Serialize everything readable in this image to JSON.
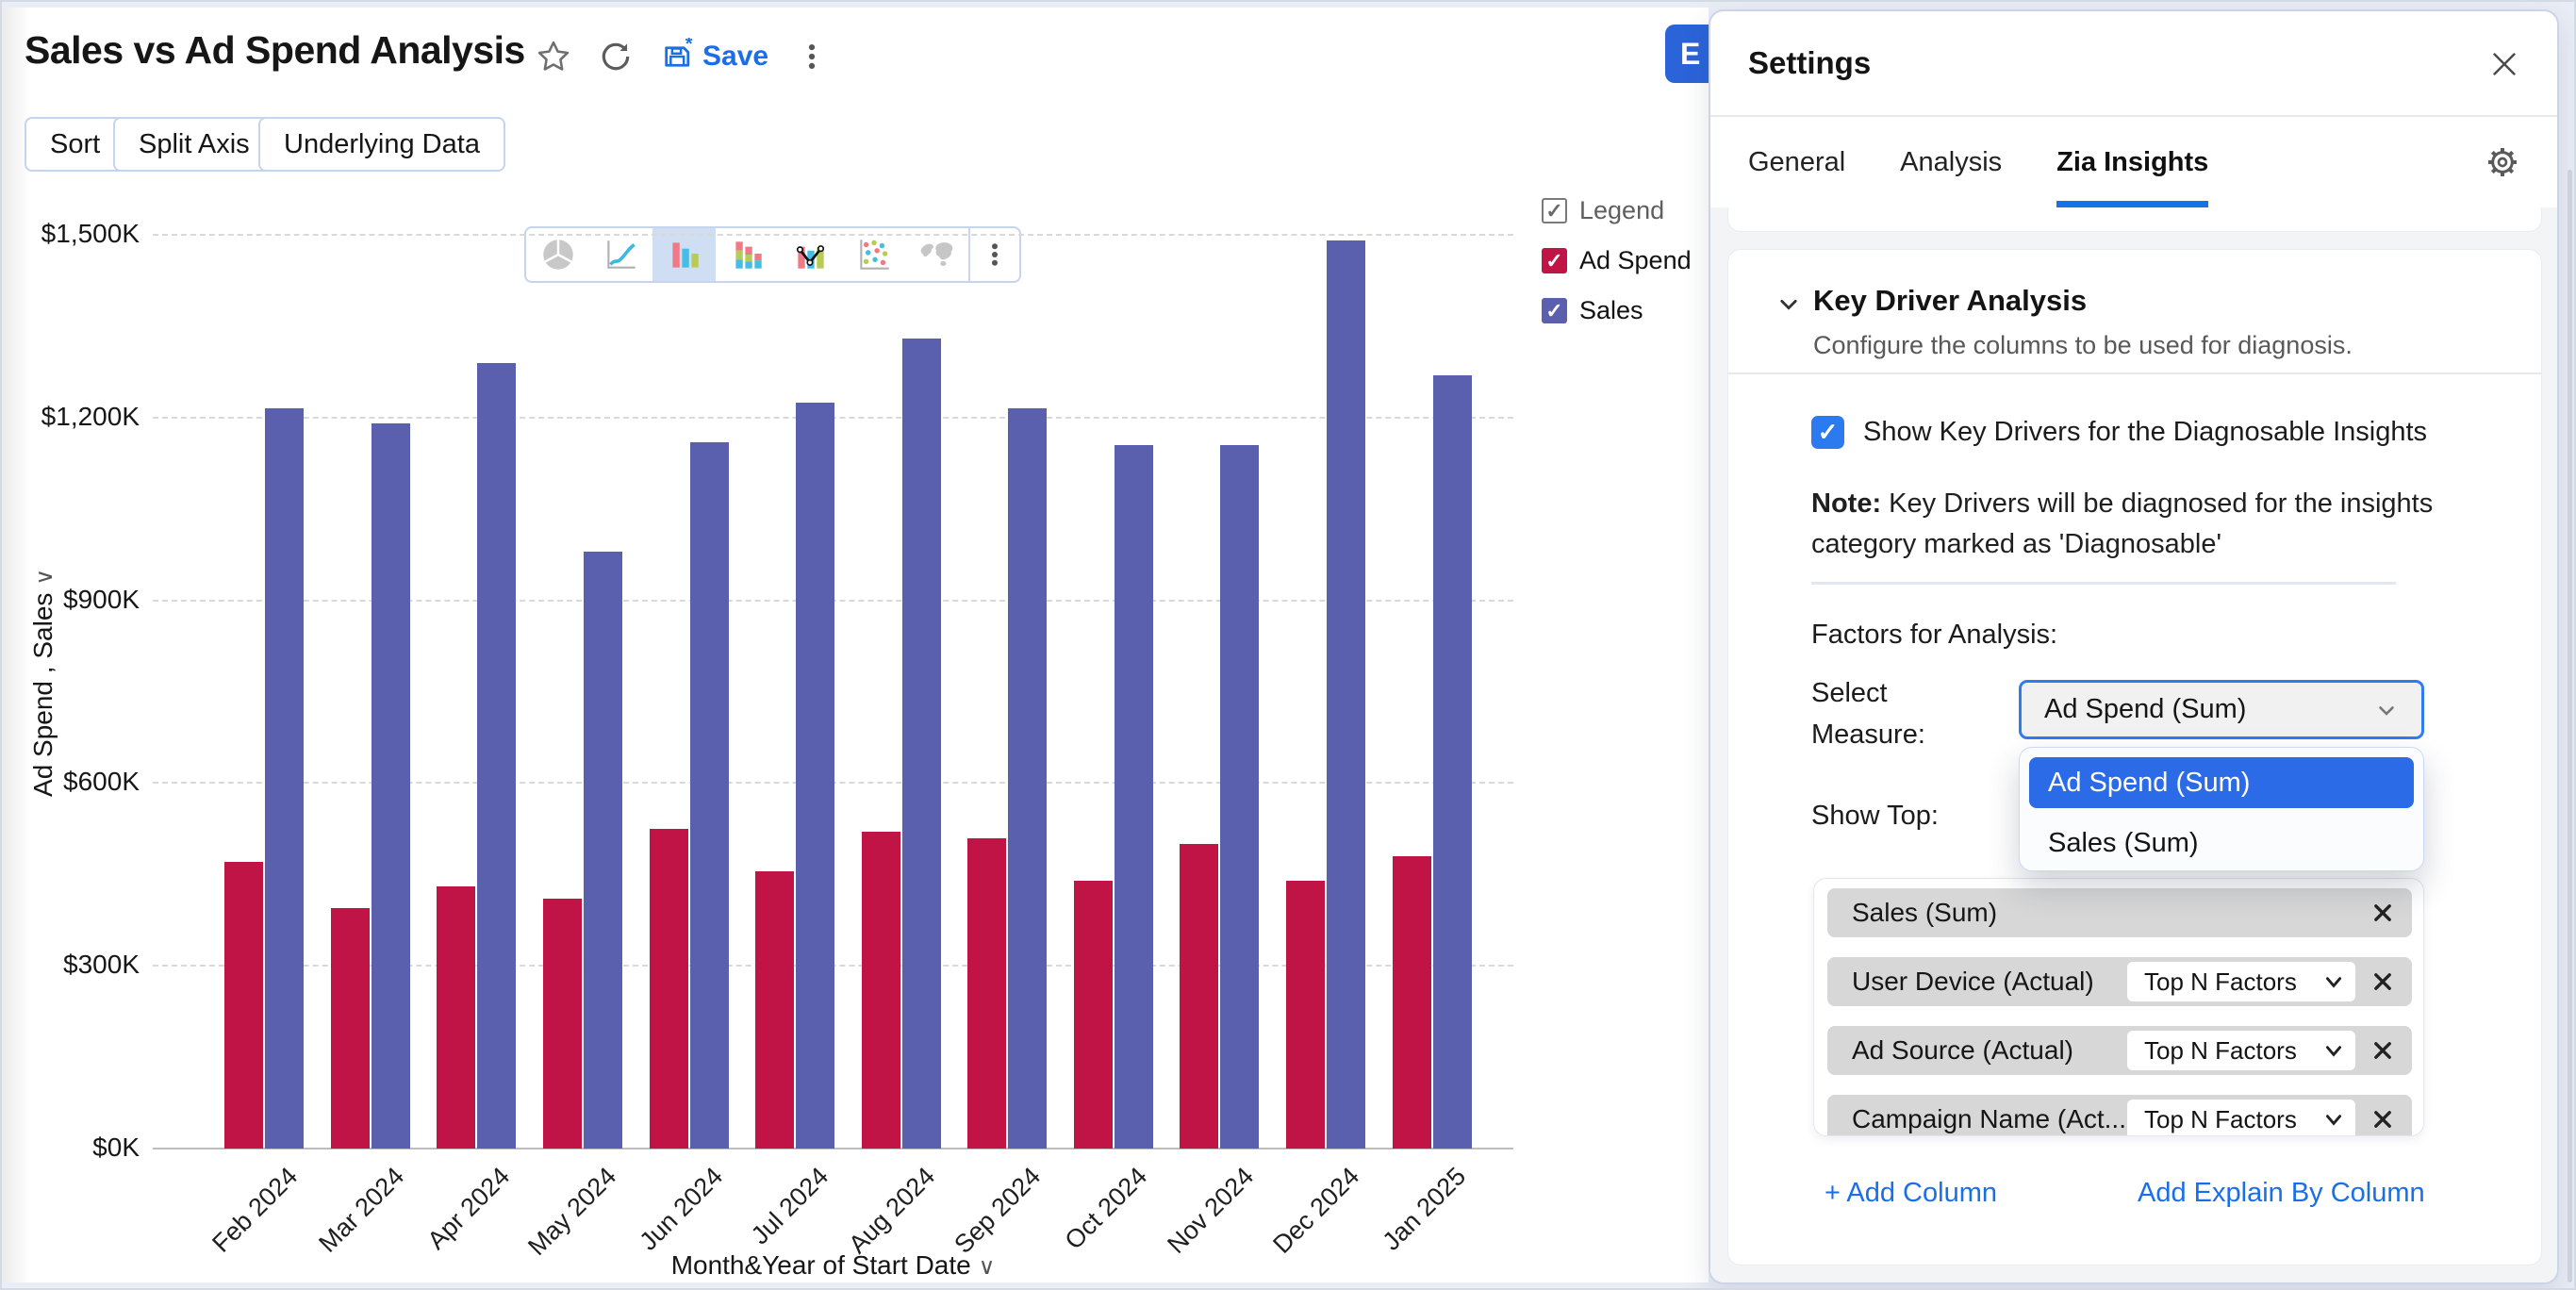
{
  "page": {
    "title": "Sales vs Ad Spend Analysis",
    "actions": {
      "save": "Save"
    },
    "partial_edit_button": "E",
    "view_buttons": [
      "Sort",
      "Split Axis",
      "Underlying Data"
    ],
    "chart_type_icons": [
      {
        "name": "pie-chart-icon",
        "state": "disabled"
      },
      {
        "name": "line-chart-icon",
        "state": "normal"
      },
      {
        "name": "bar-chart-icon",
        "state": "selected"
      },
      {
        "name": "stacked-bar-chart-icon",
        "state": "normal"
      },
      {
        "name": "combo-chart-icon",
        "state": "normal"
      },
      {
        "name": "scatter-chart-icon",
        "state": "normal"
      },
      {
        "name": "map-chart-icon",
        "state": "disabled"
      }
    ]
  },
  "legend": {
    "title": "Legend",
    "items": [
      {
        "label": "Ad Spend",
        "color": "#c01346"
      },
      {
        "label": "Sales",
        "color": "#5b60ae"
      }
    ]
  },
  "chart_data": {
    "type": "bar",
    "title": "Sales vs Ad Spend Analysis",
    "categories": [
      "Feb 2024",
      "Mar 2024",
      "Apr 2024",
      "May 2024",
      "Jun 2024",
      "Jul 2024",
      "Aug 2024",
      "Sep 2024",
      "Oct 2024",
      "Nov 2024",
      "Dec 2024",
      "Jan 2025"
    ],
    "series": [
      {
        "name": "Ad Spend",
        "color": "#c01346",
        "values": [
          470,
          395,
          430,
          410,
          525,
          455,
          520,
          510,
          440,
          500,
          440,
          480
        ]
      },
      {
        "name": "Sales",
        "color": "#5b60ae",
        "values": [
          1215,
          1190,
          1290,
          980,
          1160,
          1225,
          1330,
          1215,
          1155,
          1155,
          1490,
          1270
        ]
      }
    ],
    "unit": "thousand USD ($K)",
    "xlabel": "Month&Year of Start Date",
    "ylabel": "Ad Spend , Sales",
    "y_ticks": [
      "$0K",
      "$300K",
      "$600K",
      "$900K",
      "$1,200K",
      "$1,500K"
    ],
    "y_tick_values": [
      0,
      300,
      600,
      900,
      1200,
      1500
    ],
    "ylim": [
      0,
      1500
    ],
    "grid": "horizontal dashed",
    "legend_position": "top-right"
  },
  "settings_panel": {
    "title": "Settings",
    "tabs": [
      {
        "label": "General",
        "active": false
      },
      {
        "label": "Analysis",
        "active": false
      },
      {
        "label": "Zia Insights",
        "active": true
      }
    ],
    "key_driver": {
      "title": "Key Driver Analysis",
      "subtitle": "Configure the columns to be used for diagnosis.",
      "show_key_drivers_label": "Show Key Drivers for the Diagnosable Insights",
      "show_key_drivers_checked": true,
      "note_bold": "Note:",
      "note_text": " Key Drivers will be diagnosed for the insights category marked as 'Diagnosable'",
      "factors_label": "Factors for Analysis:",
      "select_measure_label": "Select Measure:",
      "measure_value": "Ad Spend (Sum)",
      "measure_options": [
        {
          "label": "Ad Spend (Sum)",
          "selected": true
        },
        {
          "label": "Sales (Sum)",
          "selected": false
        }
      ],
      "show_top_label": "Show Top:",
      "columns": [
        {
          "label": "Sales (Sum)",
          "top_n": null
        },
        {
          "label": "User Device (Actual)",
          "top_n": "Top N Factors"
        },
        {
          "label": "Ad Source (Actual)",
          "top_n": "Top N Factors"
        },
        {
          "label": "Campaign Name (Act...",
          "top_n": "Top N Factors"
        }
      ],
      "add_column_label": "+ Add Column",
      "add_explain_label": "Add Explain By Column"
    }
  },
  "colors": {
    "accent_blue": "#1a6fe8",
    "tab_underline": "#1473e6",
    "selected_option_bg": "#2c6be8",
    "checkbox_blue": "#2b7af0",
    "ad_spend_bar": "#c01346",
    "sales_bar": "#5b60ae",
    "chart_icon_selected_bg": "#cfdef2"
  }
}
